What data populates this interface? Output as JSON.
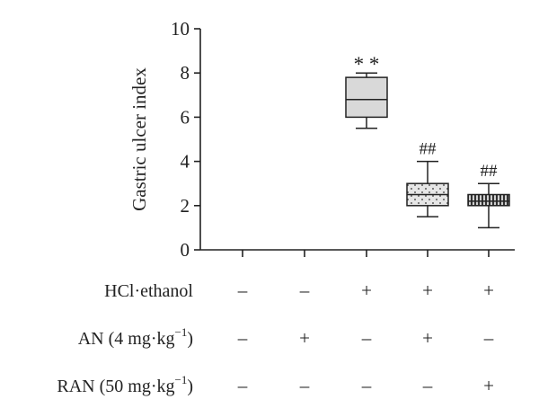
{
  "chart_data": {
    "type": "box",
    "ylabel": "Gastric ulcer index",
    "ylim": [
      0,
      10
    ],
    "yticks": [
      0,
      2,
      4,
      6,
      8,
      10
    ],
    "grid": false,
    "groups": [
      {
        "min": null,
        "q1": null,
        "median": null,
        "q3": null,
        "max": null,
        "significance": "",
        "fill": "none"
      },
      {
        "min": null,
        "q1": null,
        "median": null,
        "q3": null,
        "max": null,
        "significance": "",
        "fill": "none"
      },
      {
        "min": 5.5,
        "q1": 6.0,
        "median": 6.8,
        "q3": 7.8,
        "max": 8.0,
        "significance": "**",
        "fill": "light-gray"
      },
      {
        "min": 1.5,
        "q1": 2.0,
        "median": 2.5,
        "q3": 3.0,
        "max": 4.0,
        "significance": "##",
        "fill": "dotted"
      },
      {
        "min": 1.0,
        "q1": 2.0,
        "median": 2.2,
        "q3": 2.5,
        "max": 3.0,
        "significance": "##",
        "fill": "vertical-stripes"
      }
    ],
    "treatment_rows": [
      {
        "label": "HCl·ethanol",
        "values": [
          "–",
          "–",
          "+",
          "+",
          "+"
        ]
      },
      {
        "label_main": "AN (4 mg·kg",
        "label_sup": "−1",
        "label_close": ")",
        "values": [
          "–",
          "+",
          "–",
          "+",
          "–"
        ]
      },
      {
        "label_main": "RAN (50 mg·kg",
        "label_sup": "−1",
        "label_close": ")",
        "values": [
          "–",
          "–",
          "–",
          "–",
          "+"
        ]
      }
    ],
    "colors": {
      "axis": "#222222",
      "box_fill": "#d9d9d9",
      "pattern_bg": "#e8e8e8",
      "stripe": "#333333"
    }
  }
}
